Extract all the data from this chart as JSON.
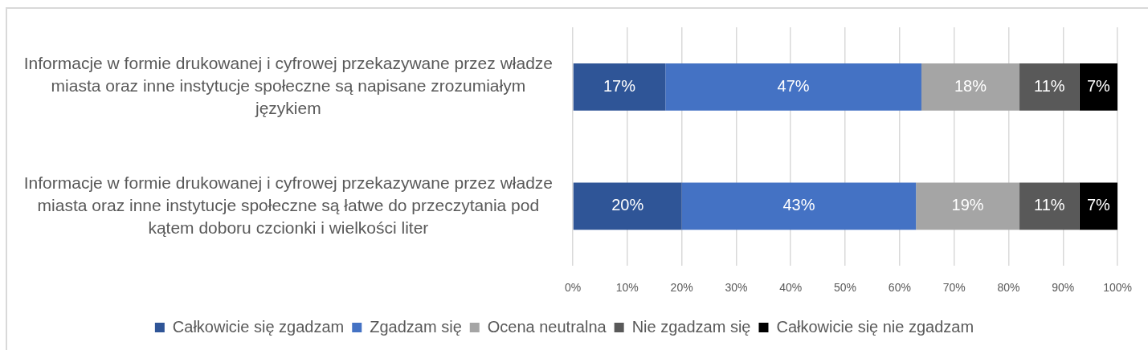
{
  "chart_data": {
    "type": "bar",
    "orientation": "horizontal",
    "stacked": true,
    "categories": [
      "Informacje w formie drukowanej i cyfrowej przekazywane przez władze miasta oraz inne instytucje społeczne są napisane zrozumiałym językiem",
      "Informacje w formie drukowanej i cyfrowej przekazywane przez władze miasta oraz inne instytucje społeczne są łatwe do przeczytania pod kątem doboru czcionki i wielkości liter"
    ],
    "series": [
      {
        "name": "Całkowicie się zgadzam",
        "color": "#2f5597",
        "values": [
          17,
          20
        ],
        "value_labels": [
          "17%",
          "20%"
        ]
      },
      {
        "name": "Zgadzam się",
        "color": "#4472c4",
        "values": [
          47,
          43
        ],
        "value_labels": [
          "47%",
          "43%"
        ]
      },
      {
        "name": "Ocena neutralna",
        "color": "#a5a5a5",
        "values": [
          18,
          19
        ],
        "value_labels": [
          "18%",
          "19%"
        ]
      },
      {
        "name": "Nie zgadzam się",
        "color": "#595959",
        "values": [
          11,
          11
        ],
        "value_labels": [
          "11%",
          "11%"
        ]
      },
      {
        "name": "Całkowicie się nie zgadzam",
        "color": "#000000",
        "values": [
          7,
          7
        ],
        "value_labels": [
          "7%",
          "7%"
        ]
      }
    ],
    "xlim": [
      0,
      100
    ],
    "xticks": [
      {
        "value": 0,
        "label": "0%"
      },
      {
        "value": 10,
        "label": "10%"
      },
      {
        "value": 20,
        "label": "20%"
      },
      {
        "value": 30,
        "label": "30%"
      },
      {
        "value": 40,
        "label": "40%"
      },
      {
        "value": 50,
        "label": "50%"
      },
      {
        "value": 60,
        "label": "60%"
      },
      {
        "value": 70,
        "label": "70%"
      },
      {
        "value": 80,
        "label": "80%"
      },
      {
        "value": 90,
        "label": "90%"
      },
      {
        "value": 100,
        "label": "100%"
      }
    ],
    "grid": "x",
    "legend": "bottom"
  }
}
